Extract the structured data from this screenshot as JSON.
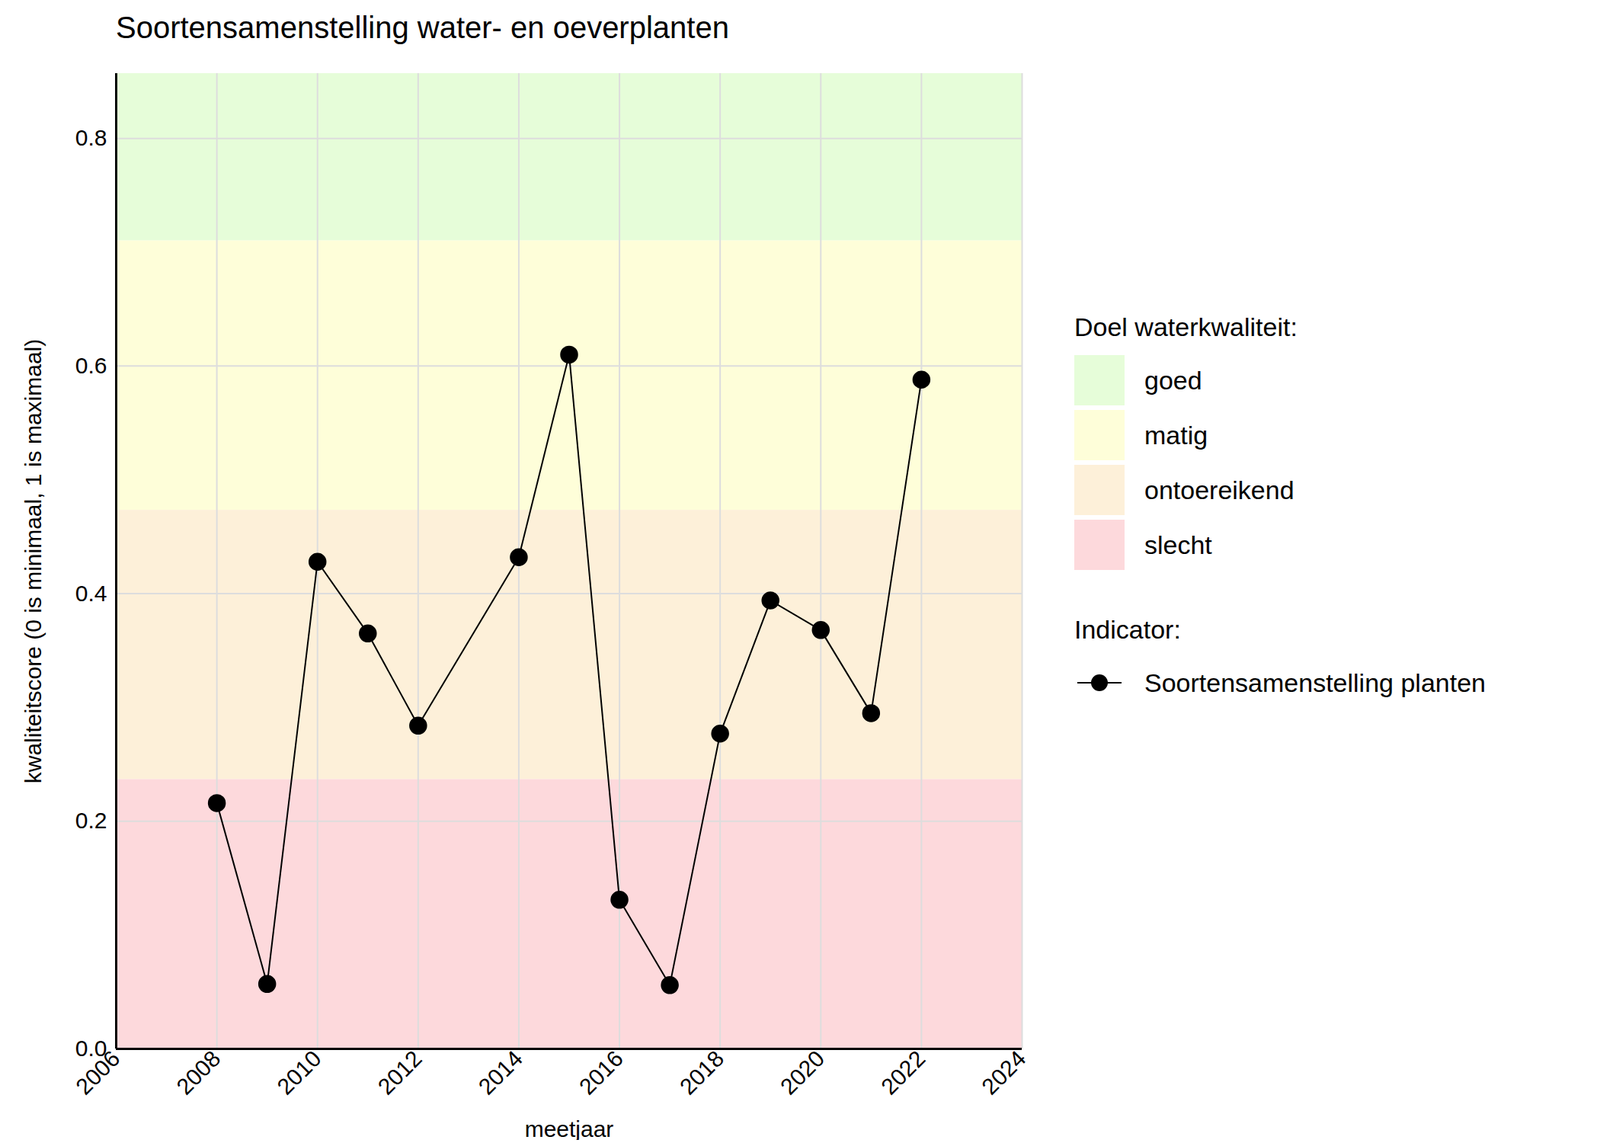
{
  "chart_data": {
    "type": "line",
    "title": "Soortensamenstelling water- en oeverplanten",
    "x_label": "meetjaar",
    "y_label": "kwaliteitscore (0 is minimaal, 1 is maximaal)",
    "x": [
      2008,
      2009,
      2010,
      2011,
      2012,
      2014,
      2015,
      2016,
      2017,
      2018,
      2019,
      2020,
      2021,
      2022
    ],
    "series": [
      {
        "name": "Soortensamenstelling planten",
        "color": "#000000",
        "marker": "circle",
        "line_style": "solid",
        "values": [
          0.216,
          0.057,
          0.428,
          0.365,
          0.284,
          0.432,
          0.61,
          0.131,
          0.056,
          0.277,
          0.394,
          0.368,
          0.295,
          0.588
        ]
      }
    ],
    "xlim": [
      2006,
      2024
    ],
    "xticks": [
      2006,
      2008,
      2010,
      2012,
      2014,
      2016,
      2018,
      2020,
      2022,
      2024
    ],
    "ylim": [
      0,
      0.857
    ],
    "yticks": [
      {
        "value": 0,
        "label": "0.0"
      },
      0.2,
      0.4,
      0.6,
      0.8
    ],
    "grid": true,
    "legend": "right",
    "legend_title": "Doel waterkwaliteit:",
    "series_legend_title": "Indicator:",
    "bands": [
      {
        "name": "goed",
        "from": 0.71,
        "to": 0.857,
        "color": "#e6fdd9"
      },
      {
        "name": "matig",
        "from": 0.4733,
        "to": 0.71,
        "color": "#fefed9"
      },
      {
        "name": "ontoereikend",
        "from": 0.2367,
        "to": 0.4733,
        "color": "#fdf0d9"
      },
      {
        "name": "slecht",
        "from": 0,
        "to": 0.2367,
        "color": "#fdd9dc"
      }
    ]
  }
}
